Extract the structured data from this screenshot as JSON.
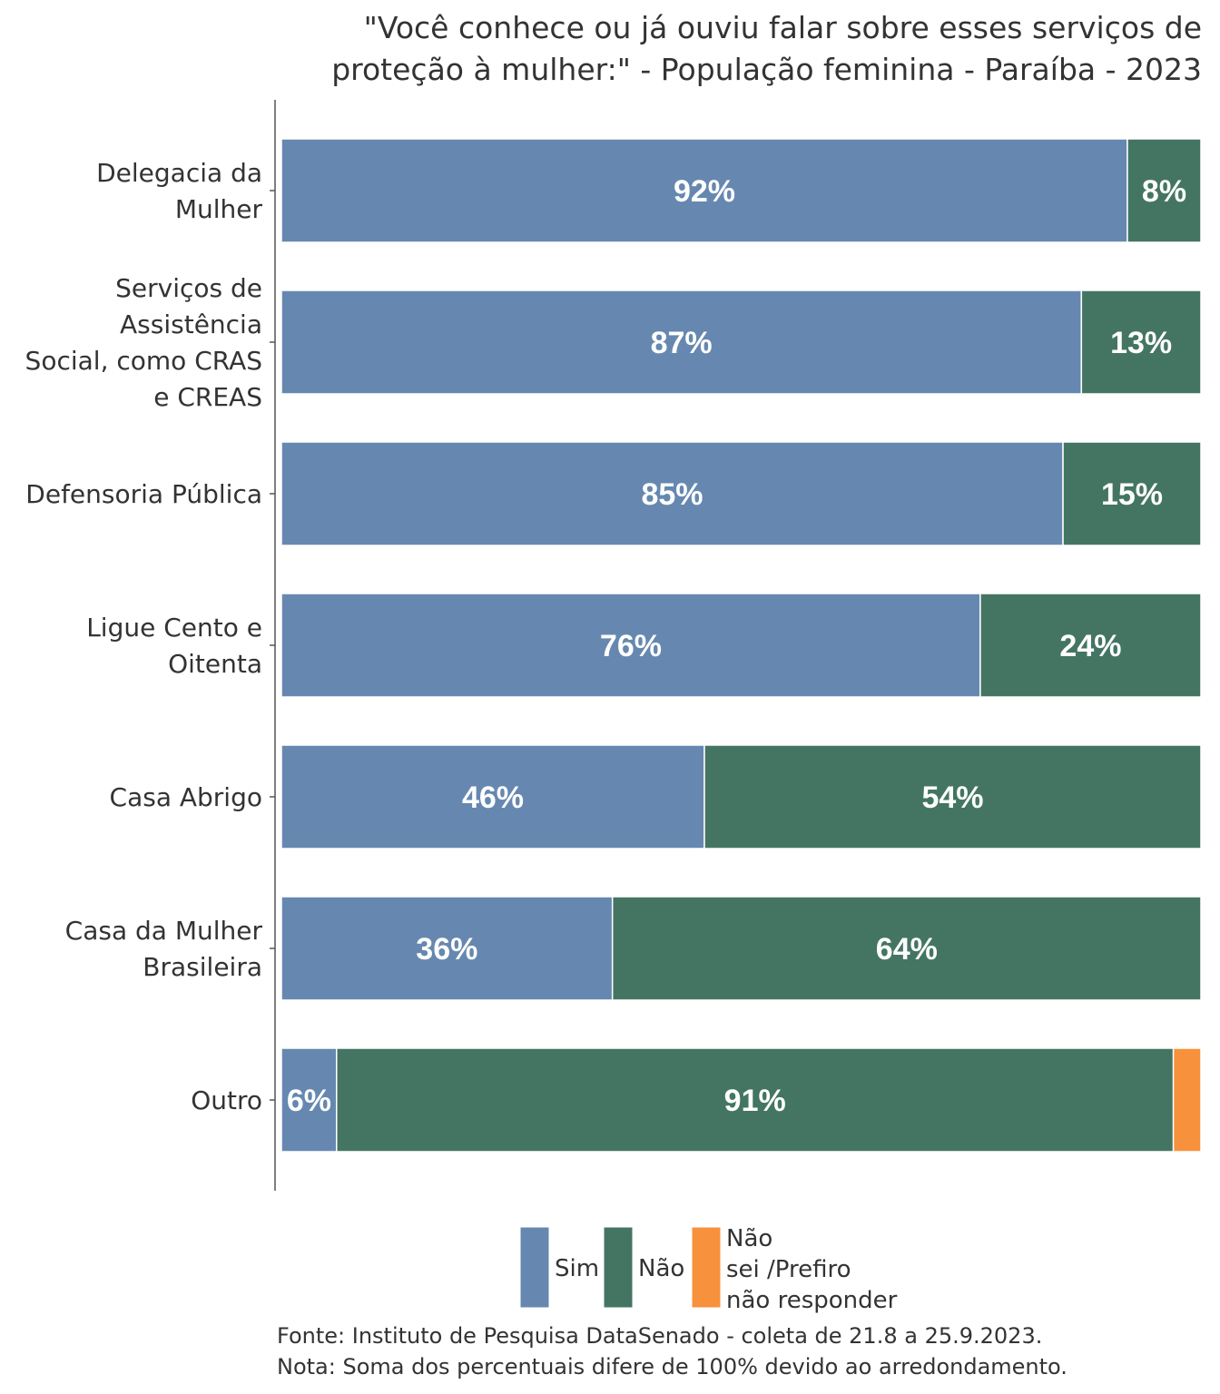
{
  "chart_data": {
    "type": "bar",
    "orientation": "horizontal",
    "stacked": true,
    "title_lines": [
      "\"Você conhece ou já ouviu falar sobre esses serviços de",
      "proteção à mulher:\" - População feminina - Paraíba - 2023"
    ],
    "categories": [
      [
        "Delegacia da",
        "Mulher"
      ],
      [
        "Serviços de",
        "Assistência",
        "Social, como CRAS",
        "e CREAS"
      ],
      [
        "Defensoria Pública"
      ],
      [
        "Ligue Cento e",
        "Oitenta"
      ],
      [
        "Casa Abrigo"
      ],
      [
        "Casa da Mulher",
        "Brasileira"
      ],
      [
        "Outro"
      ]
    ],
    "series": [
      {
        "name": "Sim",
        "color": "#6688b0",
        "values": [
          92,
          87,
          85,
          76,
          46,
          36,
          6
        ],
        "labels": [
          "92%",
          "87%",
          "85%",
          "76%",
          "46%",
          "36%",
          "6%"
        ]
      },
      {
        "name": "Não",
        "color": "#447563",
        "values": [
          8,
          13,
          15,
          24,
          54,
          64,
          91
        ],
        "labels": [
          "8%",
          "13%",
          "15%",
          "24%",
          "54%",
          "64%",
          "91%"
        ]
      },
      {
        "name_lines": [
          "Não",
          "sei /Prefiro",
          "não responder"
        ],
        "color": "#f8913c",
        "values": [
          0,
          0,
          0,
          0,
          0,
          0,
          3
        ],
        "labels": [
          "",
          "",
          "",
          "",
          "",
          "",
          ""
        ]
      }
    ],
    "xlim": [
      0,
      100
    ],
    "grid": false,
    "legend_position": "bottom",
    "caption_lines": [
      "Fonte: Instituto de Pesquisa DataSenado - coleta de 21.8 a 25.9.2023.",
      "Nota: Soma dos percentuais difere de 100% devido ao arredondamento."
    ]
  }
}
